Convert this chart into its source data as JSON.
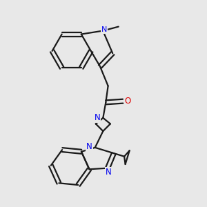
{
  "bg_color": "#e8e8e8",
  "bond_color": "#1a1a1a",
  "N_color": "#0000ee",
  "O_color": "#dd0000",
  "lw": 1.6,
  "figsize": [
    3.0,
    3.0
  ],
  "dpi": 100,
  "xlim": [
    0.05,
    0.82
  ],
  "ylim": [
    0.08,
    0.97
  ]
}
